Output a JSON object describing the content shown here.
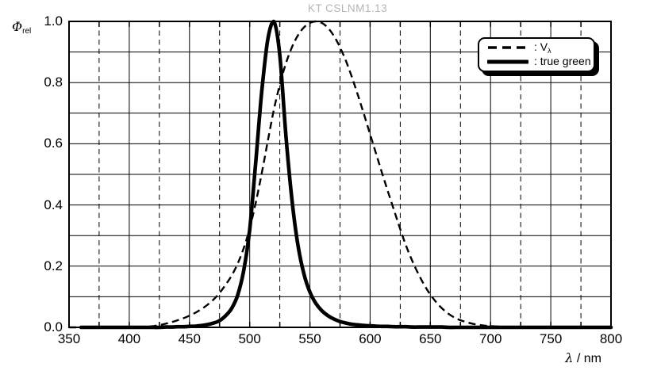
{
  "title": "KT CSLNM1.13",
  "colors": {
    "curves": "#000000",
    "grid": "#000000",
    "frame": "#000000",
    "title_text": "#b3b6b8",
    "background": "#ffffff"
  },
  "axes": {
    "x": {
      "label_lambda": "λ",
      "label_suffix": " / nm",
      "tick_labels": [
        "350",
        "400",
        "450",
        "500",
        "550",
        "600",
        "650",
        "700",
        "750",
        "800"
      ],
      "major_step": 50,
      "minor_step": 25
    },
    "y": {
      "label_phi": "Φ",
      "label_sub": "rel",
      "tick_labels": [
        "1.0",
        "0.8",
        "0.6",
        "0.4",
        "0.2",
        "0.0"
      ],
      "grid_step": 0.1
    }
  },
  "legend": {
    "entries": [
      {
        "style": "dashed",
        "label": ": V",
        "label_sub": "λ"
      },
      {
        "style": "solid",
        "label": ": true green",
        "label_sub": ""
      }
    ]
  },
  "chart_data": {
    "type": "line",
    "title": "KT CSLNM1.13",
    "xlabel": "λ / nm",
    "ylabel": "Φ_rel",
    "xlim": [
      350,
      800
    ],
    "ylim": [
      0.0,
      1.0
    ],
    "grid": "horizontal solid every 0.1; vertical solid every 50 nm; vertical dashed every 25 nm",
    "legend_position": "upper right",
    "x": [
      350,
      355,
      360,
      365,
      370,
      375,
      380,
      385,
      390,
      395,
      400,
      405,
      410,
      415,
      420,
      425,
      430,
      435,
      440,
      445,
      450,
      455,
      460,
      465,
      470,
      475,
      480,
      485,
      490,
      495,
      500,
      505,
      510,
      515,
      520,
      525,
      530,
      535,
      540,
      545,
      550,
      555,
      560,
      565,
      570,
      575,
      580,
      585,
      590,
      595,
      600,
      605,
      610,
      615,
      620,
      625,
      630,
      635,
      640,
      645,
      650,
      655,
      660,
      665,
      670,
      675,
      680,
      685,
      690,
      695,
      700,
      705,
      710,
      715,
      720,
      725,
      730,
      735,
      740,
      745,
      750,
      755,
      760,
      765,
      770,
      775,
      780,
      785,
      790,
      795,
      800
    ],
    "series": [
      {
        "name": "V_λ",
        "style": "dashed",
        "peak_nm": 555,
        "start_nm": 350,
        "values": [
          0,
          0,
          0,
          0,
          0,
          0,
          0,
          0.0001,
          0.0001,
          0.0002,
          0.0004,
          0.0006,
          0.0012,
          0.0022,
          0.004,
          0.0073,
          0.0116,
          0.0168,
          0.023,
          0.0298,
          0.038,
          0.048,
          0.06,
          0.0739,
          0.091,
          0.1126,
          0.139,
          0.1693,
          0.208,
          0.2586,
          0.323,
          0.4073,
          0.503,
          0.6082,
          0.71,
          0.7932,
          0.862,
          0.9149,
          0.954,
          0.9803,
          0.995,
          1.0,
          0.995,
          0.9786,
          0.952,
          0.9154,
          0.87,
          0.8163,
          0.757,
          0.6949,
          0.631,
          0.5668,
          0.503,
          0.4412,
          0.381,
          0.321,
          0.265,
          0.217,
          0.175,
          0.1382,
          0.107,
          0.0816,
          0.061,
          0.0446,
          0.032,
          0.0232,
          0.017,
          0.0119,
          0.0082,
          0.0057,
          0.0041,
          0.0029,
          0.0021,
          0.0015,
          0.001,
          0.0007,
          0.0005,
          0.0004,
          0.0003,
          0.0002,
          0.0001,
          0.0001,
          0.0001,
          0,
          0,
          0,
          0,
          0,
          0,
          0,
          0
        ]
      },
      {
        "name": "true green",
        "style": "solid",
        "peak_nm": 519,
        "start_nm": 360,
        "values": [
          0,
          0,
          0,
          0,
          0,
          0,
          0,
          0,
          0,
          0,
          0,
          0,
          0,
          0,
          0,
          0,
          0.001,
          0.001,
          0.002,
          0.002,
          0.003,
          0.004,
          0.006,
          0.009,
          0.014,
          0.022,
          0.038,
          0.062,
          0.105,
          0.185,
          0.32,
          0.54,
          0.77,
          0.94,
          1.0,
          0.89,
          0.63,
          0.42,
          0.27,
          0.175,
          0.115,
          0.078,
          0.054,
          0.038,
          0.027,
          0.019,
          0.014,
          0.01,
          0.008,
          0.006,
          0.005,
          0.004,
          0.003,
          0.003,
          0.002,
          0.002,
          0.002,
          0.001,
          0.001,
          0.001,
          0.001,
          0.001,
          0.001,
          0,
          0,
          0,
          0,
          0,
          0,
          0,
          0,
          0,
          0,
          0,
          0,
          0,
          0,
          0,
          0,
          0,
          0,
          0,
          0,
          0,
          0,
          0,
          0,
          0,
          0,
          0,
          0
        ]
      }
    ]
  }
}
